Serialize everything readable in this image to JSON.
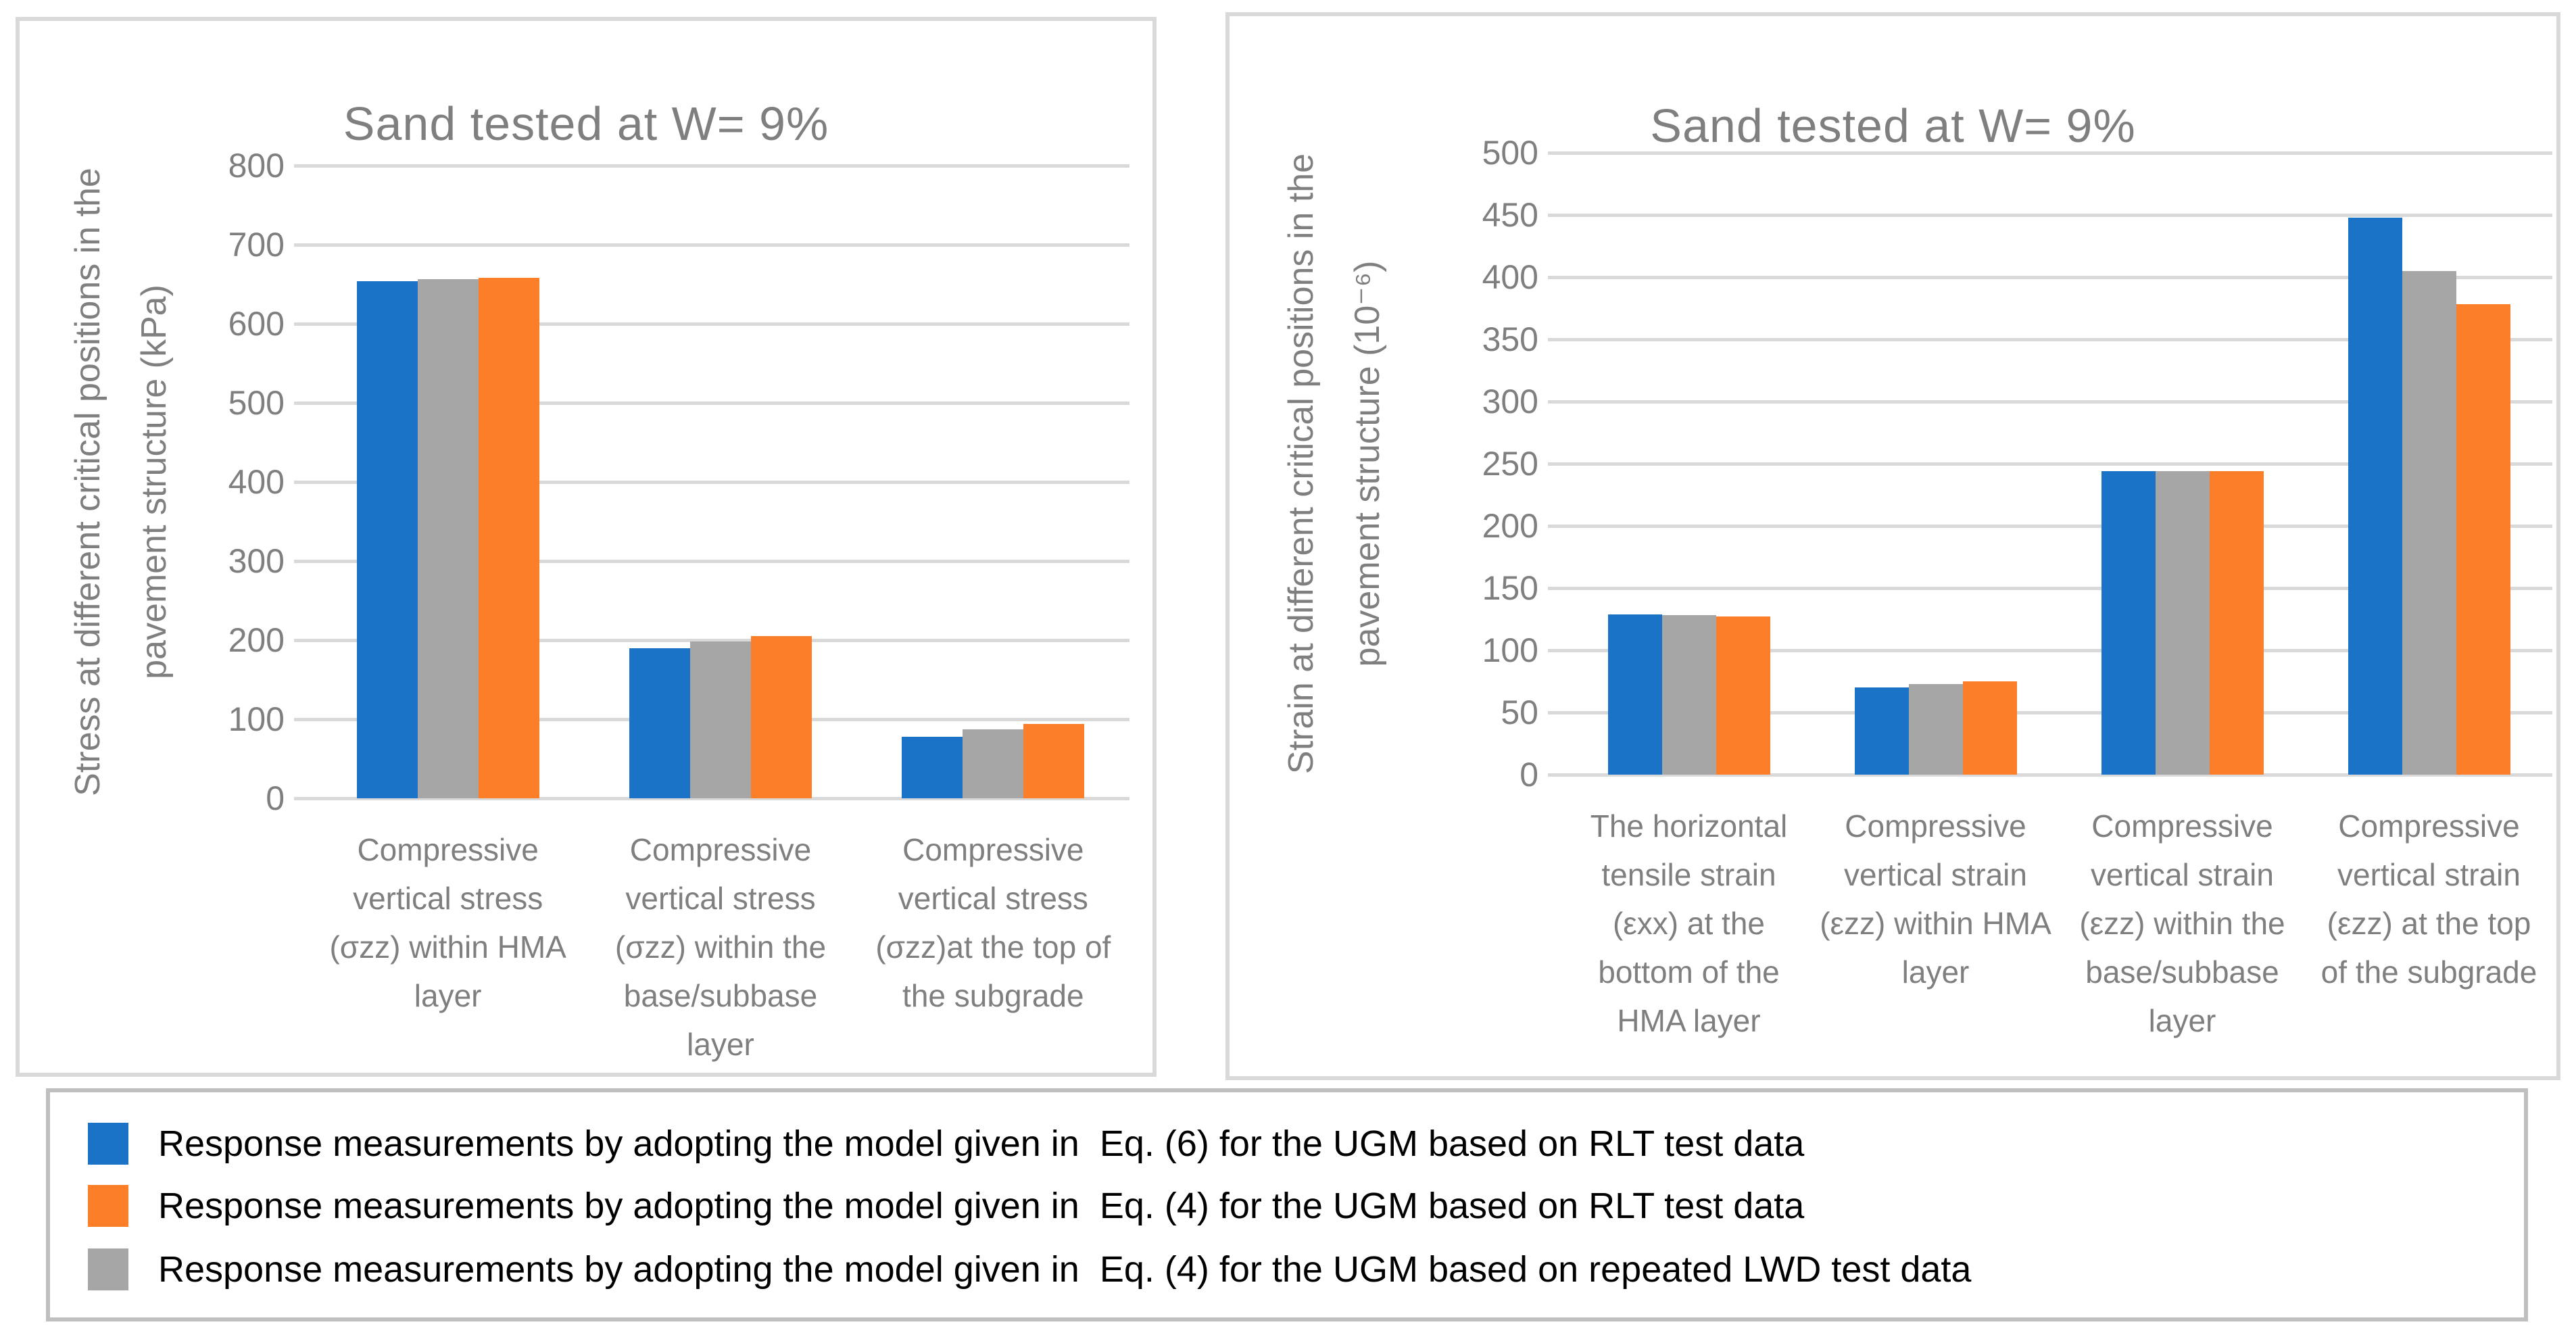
{
  "colors": {
    "blue": "#1b73c8",
    "orange": "#fd7e28",
    "gray": "#a6a6a6",
    "grid": "#d9d9d9",
    "chart_text": "#7f7f7f",
    "legend_text": "#000000",
    "panel_border": "#d9d9d9",
    "legend_border": "#bfbfbf"
  },
  "chart_data": [
    {
      "type": "bar",
      "title": "Sand tested at W= 9%",
      "ylabel_line1": "Stress at different critical positions in the",
      "ylabel_line2": "pavement structure (kPa)",
      "ylim": [
        0,
        800
      ],
      "ystep": 100,
      "yticks": [
        0,
        100,
        200,
        300,
        400,
        500,
        600,
        700,
        800
      ],
      "grid": true,
      "legend_position": "shared-bottom",
      "categories": [
        "Compressive vertical stress (σzz)  within HMA layer",
        "Compressive vertical stress (σzz) within the base/subbase layer",
        "Compressive vertical stress (σzz)at the top of the subgrade"
      ],
      "series": [
        {
          "name": "Response measurements by adopting the model given in  Eq. (6) for the UGM based on RLT test data",
          "color_key": "blue",
          "values": [
            654,
            190,
            78
          ]
        },
        {
          "name": "Response measurements by adopting the model given in  Eq. (4) for the UGM based on repeated LWD test data",
          "color_key": "gray",
          "values": [
            656,
            198,
            87
          ]
        },
        {
          "name": "Response measurements by adopting the model given in  Eq. (4) for the UGM based on RLT test data",
          "color_key": "orange",
          "values": [
            658,
            205,
            94
          ]
        }
      ]
    },
    {
      "type": "bar",
      "title": "Sand tested at W= 9%",
      "ylabel_line1": "Strain at different critical positions in the",
      "ylabel_line2": "pavement structure (10⁻⁶)",
      "ylim": [
        0,
        500
      ],
      "ystep": 50,
      "yticks": [
        0,
        50,
        100,
        150,
        200,
        250,
        300,
        350,
        400,
        450,
        500
      ],
      "grid": true,
      "legend_position": "shared-bottom",
      "categories": [
        "The horizontal tensile strain (εxx) at the bottom of the HMA layer",
        "Compressive vertical strain (εzz) within HMA layer",
        "Compressive vertical strain (εzz) within the base/subbase layer",
        "Compressive vertical strain (εzz) at the top of the subgrade"
      ],
      "series": [
        {
          "name": "Response measurements by adopting the model given in  Eq. (6) for the UGM based on RLT test data",
          "color_key": "blue",
          "values": [
            129,
            70,
            244,
            448
          ]
        },
        {
          "name": "Response measurements by adopting the model given in  Eq. (4) for the UGM based on repeated LWD test data",
          "color_key": "gray",
          "values": [
            128,
            73,
            244,
            405
          ]
        },
        {
          "name": "Response measurements by adopting the model given in  Eq. (4) for the UGM based on RLT test data",
          "color_key": "orange",
          "values": [
            127,
            75,
            244,
            378
          ]
        }
      ]
    }
  ],
  "legend": {
    "items": [
      {
        "color_key": "blue",
        "label": "Response measurements by adopting the model given in  Eq. (6) for the UGM based on RLT test data"
      },
      {
        "color_key": "orange",
        "label": "Response measurements by adopting the model given in  Eq. (4) for the UGM based on RLT test data"
      },
      {
        "color_key": "gray",
        "label": "Response measurements by adopting the model given in  Eq. (4) for the UGM based on repeated LWD test data"
      }
    ]
  }
}
